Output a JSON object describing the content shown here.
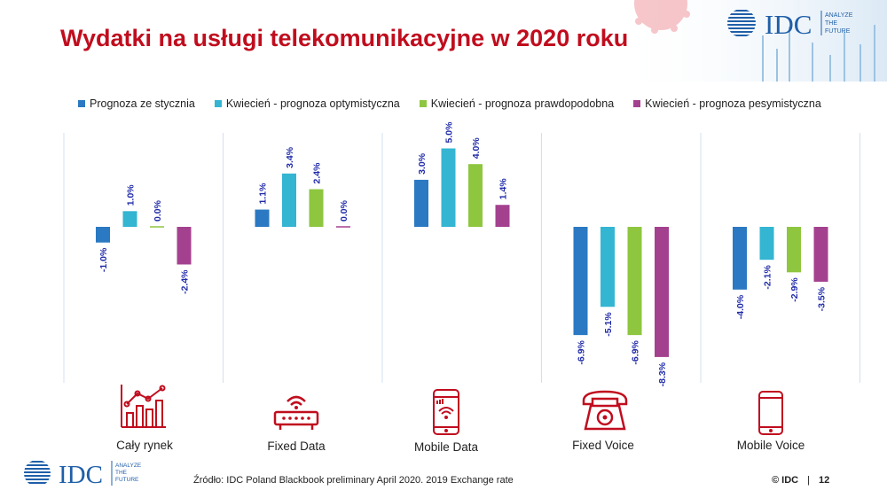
{
  "title": "Wydatki na usługi telekomunikacyjne w 2020 roku",
  "logo": {
    "text": "IDC",
    "tagline": [
      "ANALYZE",
      "THE",
      "FUTURE"
    ]
  },
  "footer": {
    "source": "Źródło: IDC Poland Blackbook preliminary April 2020. 2019 Exchange rate",
    "copyright": "© IDC",
    "page": "12"
  },
  "colors": {
    "title": "#c00d1e",
    "icon": "#c00d1e",
    "logo": "#1f5fa8"
  },
  "icons": [
    "bar-chart-growth-icon",
    "router-icon",
    "smartphone-wifi-icon",
    "telephone-icon",
    "smartphone-icon"
  ],
  "chart_data": {
    "type": "bar",
    "categories": [
      "Cały rynek",
      "Fixed Data",
      "Mobile Data",
      "Fixed Voice",
      "Mobile Voice"
    ],
    "series": [
      {
        "name": "Prognoza ze stycznia",
        "color": "#2a79c2",
        "values": [
          -1.0,
          1.1,
          3.0,
          -6.9,
          -4.0
        ],
        "labels": [
          "-1.0%",
          "1.1%",
          "3.0%",
          "-6.9%",
          "-4.0%"
        ]
      },
      {
        "name": "Kwiecień - prognoza optymistyczna",
        "color": "#34b5d2",
        "values": [
          1.0,
          3.4,
          5.0,
          -5.1,
          -2.1
        ],
        "labels": [
          "1.0%",
          "3.4%",
          "5.0%",
          "-5.1%",
          "-2.1%"
        ]
      },
      {
        "name": "Kwiecień - prognoza prawdopodobna",
        "color": "#8ec63f",
        "values": [
          0.0,
          2.4,
          4.0,
          -6.9,
          -2.9
        ],
        "labels": [
          "0.0%",
          "2.4%",
          "4.0%",
          "-6.9%",
          "-2.9%"
        ]
      },
      {
        "name": "Kwiecień - prognoza pesymistyczna",
        "color": "#a4418f",
        "values": [
          -2.4,
          0.0,
          1.4,
          -8.3,
          -3.5
        ],
        "labels": [
          "-2.4%",
          "0.0%",
          "1.4%",
          "-8.3%",
          "-3.5%"
        ]
      }
    ],
    "grid": false,
    "legend": "top",
    "data_label_color": "#1f2aa8"
  }
}
